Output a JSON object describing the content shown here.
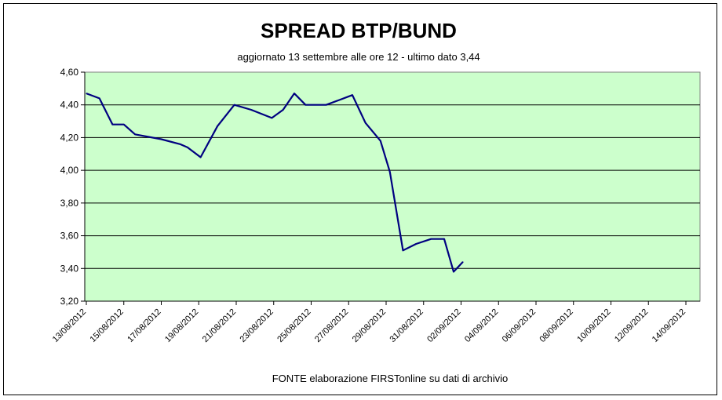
{
  "chart_data": {
    "type": "line",
    "title": "SPREAD  BTP/BUND",
    "subtitle": "aggiornato 13 settembre alle ore 12 - ultimo dato 3,44",
    "footer": "FONTE elaborazione FIRSTonline su dati di archivio",
    "ylim": [
      3.2,
      4.6
    ],
    "yticks": [
      "3,20",
      "3,40",
      "3,60",
      "3,80",
      "4,00",
      "4,20",
      "4,40",
      "4,60"
    ],
    "ytick_values": [
      3.2,
      3.4,
      3.6,
      3.8,
      4.0,
      4.2,
      4.4,
      4.6
    ],
    "xtick_labels": [
      "13/08/2012",
      "15/08/2012",
      "17/08/2012",
      "19/08/2012",
      "21/08/2012",
      "23/08/2012",
      "25/08/2012",
      "27/08/2012",
      "29/08/2012",
      "31/08/2012",
      "02/09/2012",
      "04/09/2012",
      "06/09/2012",
      "08/09/2012",
      "10/09/2012",
      "12/09/2012",
      "14/09/2012"
    ],
    "grid": true,
    "plot_background": "#ccffcc",
    "line_color": "#000080",
    "series": [
      {
        "values": [
          [
            0.0,
            4.47
          ],
          [
            0.35,
            4.44
          ],
          [
            0.7,
            4.28
          ],
          [
            1.0,
            4.28
          ],
          [
            1.3,
            4.22
          ],
          [
            2.0,
            4.19
          ],
          [
            2.5,
            4.16
          ],
          [
            2.7,
            4.14
          ],
          [
            3.05,
            4.08
          ],
          [
            3.5,
            4.27
          ],
          [
            3.95,
            4.4
          ],
          [
            4.4,
            4.37
          ],
          [
            4.95,
            4.32
          ],
          [
            5.25,
            4.37
          ],
          [
            5.55,
            4.47
          ],
          [
            5.85,
            4.4
          ],
          [
            6.4,
            4.4
          ],
          [
            6.75,
            4.43
          ],
          [
            7.1,
            4.46
          ],
          [
            7.45,
            4.29
          ],
          [
            7.85,
            4.18
          ],
          [
            8.1,
            3.99
          ],
          [
            8.45,
            3.51
          ],
          [
            8.8,
            3.55
          ],
          [
            9.2,
            3.58
          ],
          [
            9.55,
            3.58
          ],
          [
            9.8,
            3.38
          ],
          [
            10.05,
            3.44
          ]
        ]
      }
    ]
  }
}
